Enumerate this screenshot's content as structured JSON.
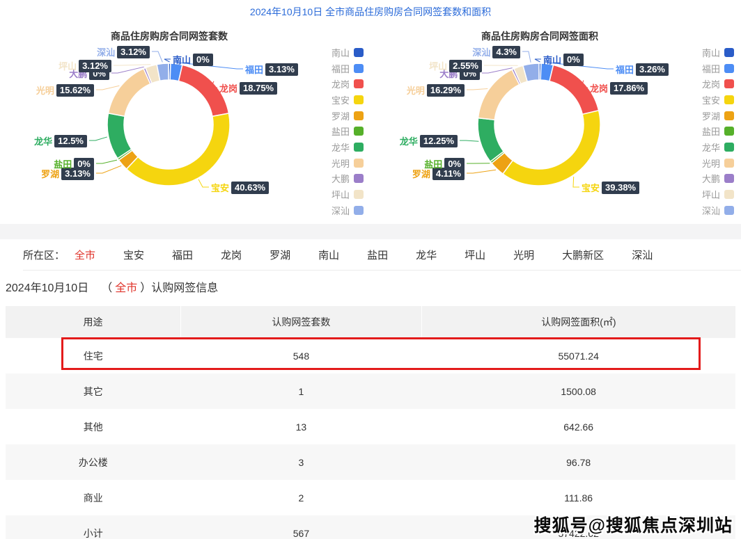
{
  "page_title": "2024年10月10日 全市商品住房购房合同网签套数和面积",
  "districts": [
    "南山",
    "福田",
    "龙岗",
    "宝安",
    "罗湖",
    "盐田",
    "龙华",
    "光明",
    "大鹏",
    "坪山",
    "深汕"
  ],
  "palette": [
    "#2a5cc8",
    "#4d8df5",
    "#f0504d",
    "#f5d50f",
    "#eda214",
    "#56b02a",
    "#2ead61",
    "#f6cf9a",
    "#9b7ec9",
    "#f2e4c8",
    "#92aee9"
  ],
  "label_badge_bg": "#313d4e",
  "chart_data": [
    {
      "type": "pie",
      "subtype": "donut",
      "title": "商品住房购房合同网签套数",
      "categories": [
        "南山",
        "福田",
        "龙岗",
        "宝安",
        "罗湖",
        "盐田",
        "龙华",
        "光明",
        "大鹏",
        "坪山",
        "深汕"
      ],
      "values": [
        0,
        3.13,
        18.75,
        40.63,
        3.13,
        0,
        12.5,
        15.62,
        0,
        3.12,
        3.12
      ],
      "labels": [
        "0%",
        "3.13%",
        "18.75%",
        "40.63%",
        "3.13%",
        "0%",
        "12.5%",
        "15.62%",
        "0%",
        "3.12%",
        "3.12%"
      ],
      "legend": [
        "南山",
        "福田",
        "龙岗",
        "宝安",
        "罗湖",
        "盐田",
        "龙华",
        "光明",
        "大鹏",
        "坪山",
        "深汕"
      ],
      "legend_position": "right",
      "unit": "percent"
    },
    {
      "type": "pie",
      "subtype": "donut",
      "title": "商品住房购房合同网签面积",
      "categories": [
        "南山",
        "福田",
        "龙岗",
        "宝安",
        "罗湖",
        "盐田",
        "龙华",
        "光明",
        "大鹏",
        "坪山",
        "深汕"
      ],
      "values": [
        0,
        3.26,
        17.86,
        39.38,
        4.11,
        0,
        12.25,
        16.29,
        0,
        2.55,
        4.3
      ],
      "labels": [
        "0%",
        "3.26%",
        "17.86%",
        "39.38%",
        "4.11%",
        "0%",
        "12.25%",
        "16.29%",
        "0%",
        "2.55%",
        "4.3%"
      ],
      "legend": [
        "南山",
        "福田",
        "龙岗",
        "宝安",
        "罗湖",
        "盐田",
        "龙华",
        "光明",
        "大鹏",
        "坪山",
        "深汕"
      ],
      "legend_position": "right",
      "unit": "percent"
    }
  ],
  "filter": {
    "label": "所在区：",
    "options": [
      "全市",
      "宝安",
      "福田",
      "龙岗",
      "罗湖",
      "南山",
      "盐田",
      "龙华",
      "坪山",
      "光明",
      "大鹏新区",
      "深汕"
    ],
    "active_index": 0,
    "active_color": "#e0342b"
  },
  "section": {
    "date": "2024年10月10日",
    "paren_open": "（",
    "scope": "全市",
    "paren_close": "）",
    "suffix": "认购网签信息"
  },
  "table": {
    "headers": [
      "用途",
      "认购网签套数",
      "认购网签面积(㎡)"
    ],
    "rows": [
      {
        "use": "住宅",
        "count": "548",
        "area": "55071.24",
        "highlighted": true
      },
      {
        "use": "其它",
        "count": "1",
        "area": "1500.08",
        "highlighted": false
      },
      {
        "use": "其他",
        "count": "13",
        "area": "642.66",
        "highlighted": false
      },
      {
        "use": "办公楼",
        "count": "3",
        "area": "96.78",
        "highlighted": false
      },
      {
        "use": "商业",
        "count": "2",
        "area": "111.86",
        "highlighted": false
      },
      {
        "use": "小计",
        "count": "567",
        "area": "57422.62",
        "highlighted": false
      }
    ]
  },
  "watermark": "搜狐号@搜狐焦点深圳站"
}
